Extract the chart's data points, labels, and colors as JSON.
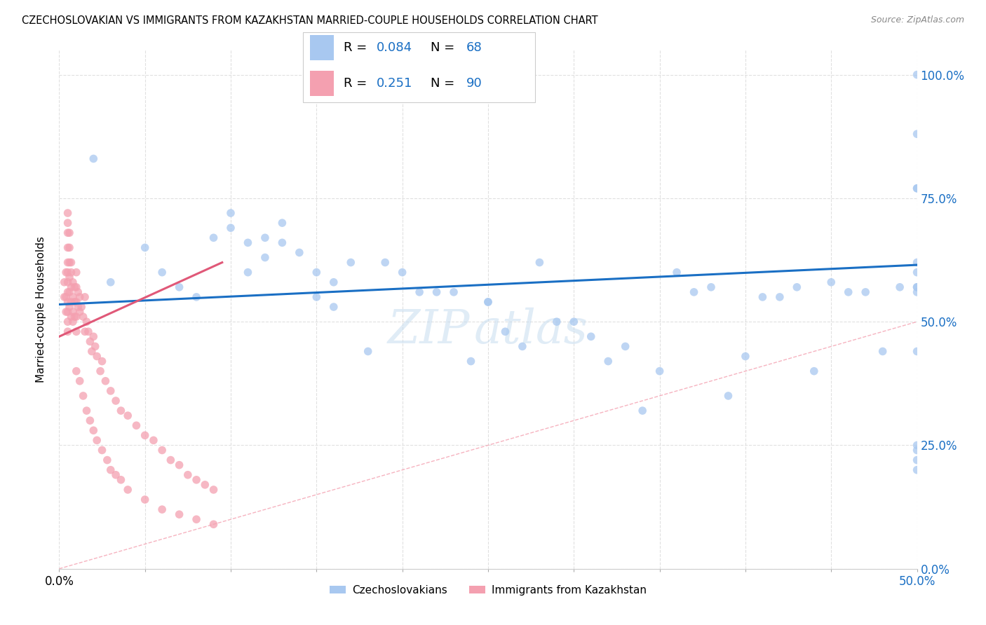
{
  "title": "CZECHOSLOVAKIAN VS IMMIGRANTS FROM KAZAKHSTAN MARRIED-COUPLE HOUSEHOLDS CORRELATION CHART",
  "source": "Source: ZipAtlas.com",
  "ylabel": "Married-couple Households",
  "yticks": [
    "0.0%",
    "25.0%",
    "50.0%",
    "75.0%",
    "100.0%"
  ],
  "ytick_vals": [
    0.0,
    0.25,
    0.5,
    0.75,
    1.0
  ],
  "xlim": [
    0.0,
    0.5
  ],
  "ylim": [
    0.0,
    1.05
  ],
  "color_blue": "#a8c8f0",
  "color_pink": "#f4a0b0",
  "line_color_blue": "#1a6fc4",
  "line_color_pink": "#e05878",
  "diag_color": "#f4a0b0",
  "watermark": "ZIPAtlas",
  "blue_line_x": [
    0.0,
    0.5
  ],
  "blue_line_y": [
    0.535,
    0.615
  ],
  "pink_line_x": [
    0.0,
    0.095
  ],
  "pink_line_y": [
    0.47,
    0.62
  ],
  "background_color": "#ffffff",
  "grid_color": "#e0e0e0",
  "blue_scatter_x": [
    0.02,
    0.03,
    0.05,
    0.06,
    0.07,
    0.08,
    0.09,
    0.1,
    0.1,
    0.11,
    0.11,
    0.12,
    0.12,
    0.13,
    0.13,
    0.14,
    0.15,
    0.15,
    0.16,
    0.16,
    0.17,
    0.18,
    0.19,
    0.2,
    0.21,
    0.22,
    0.23,
    0.24,
    0.25,
    0.25,
    0.26,
    0.27,
    0.28,
    0.29,
    0.3,
    0.31,
    0.32,
    0.33,
    0.34,
    0.35,
    0.36,
    0.37,
    0.38,
    0.39,
    0.4,
    0.41,
    0.42,
    0.43,
    0.44,
    0.45,
    0.46,
    0.47,
    0.48,
    0.49,
    0.5,
    0.5,
    0.5,
    0.5,
    0.5,
    0.5,
    0.5,
    0.5,
    0.5,
    0.5,
    0.5,
    0.5,
    0.5,
    0.5
  ],
  "blue_scatter_y": [
    0.83,
    0.58,
    0.65,
    0.6,
    0.57,
    0.55,
    0.67,
    0.72,
    0.69,
    0.66,
    0.6,
    0.63,
    0.67,
    0.66,
    0.7,
    0.64,
    0.6,
    0.55,
    0.58,
    0.53,
    0.62,
    0.44,
    0.62,
    0.6,
    0.56,
    0.56,
    0.56,
    0.42,
    0.54,
    0.54,
    0.48,
    0.45,
    0.62,
    0.5,
    0.5,
    0.47,
    0.42,
    0.45,
    0.32,
    0.4,
    0.6,
    0.56,
    0.57,
    0.35,
    0.43,
    0.55,
    0.55,
    0.57,
    0.4,
    0.58,
    0.56,
    0.56,
    0.44,
    0.57,
    0.6,
    0.44,
    0.57,
    0.57,
    0.77,
    0.77,
    0.88,
    0.62,
    0.2,
    0.22,
    0.25,
    0.24,
    1.0,
    0.56
  ],
  "pink_scatter_x": [
    0.003,
    0.003,
    0.004,
    0.004,
    0.004,
    0.005,
    0.005,
    0.005,
    0.005,
    0.005,
    0.005,
    0.005,
    0.005,
    0.005,
    0.005,
    0.005,
    0.005,
    0.006,
    0.006,
    0.006,
    0.006,
    0.006,
    0.006,
    0.007,
    0.007,
    0.007,
    0.007,
    0.007,
    0.008,
    0.008,
    0.008,
    0.008,
    0.009,
    0.009,
    0.009,
    0.01,
    0.01,
    0.01,
    0.01,
    0.01,
    0.011,
    0.011,
    0.012,
    0.012,
    0.013,
    0.014,
    0.015,
    0.015,
    0.016,
    0.017,
    0.018,
    0.019,
    0.02,
    0.021,
    0.022,
    0.024,
    0.025,
    0.027,
    0.03,
    0.033,
    0.036,
    0.04,
    0.045,
    0.05,
    0.055,
    0.06,
    0.065,
    0.07,
    0.075,
    0.08,
    0.085,
    0.09,
    0.01,
    0.012,
    0.014,
    0.016,
    0.018,
    0.02,
    0.022,
    0.025,
    0.028,
    0.03,
    0.033,
    0.036,
    0.04,
    0.05,
    0.06,
    0.07,
    0.08,
    0.09
  ],
  "pink_scatter_y": [
    0.55,
    0.58,
    0.6,
    0.55,
    0.52,
    0.72,
    0.7,
    0.68,
    0.65,
    0.62,
    0.6,
    0.58,
    0.56,
    0.54,
    0.52,
    0.5,
    0.48,
    0.68,
    0.65,
    0.62,
    0.59,
    0.56,
    0.53,
    0.62,
    0.6,
    0.57,
    0.54,
    0.51,
    0.58,
    0.55,
    0.52,
    0.5,
    0.57,
    0.54,
    0.51,
    0.6,
    0.57,
    0.54,
    0.51,
    0.48,
    0.56,
    0.53,
    0.55,
    0.52,
    0.53,
    0.51,
    0.55,
    0.48,
    0.5,
    0.48,
    0.46,
    0.44,
    0.47,
    0.45,
    0.43,
    0.4,
    0.42,
    0.38,
    0.36,
    0.34,
    0.32,
    0.31,
    0.29,
    0.27,
    0.26,
    0.24,
    0.22,
    0.21,
    0.19,
    0.18,
    0.17,
    0.16,
    0.4,
    0.38,
    0.35,
    0.32,
    0.3,
    0.28,
    0.26,
    0.24,
    0.22,
    0.2,
    0.19,
    0.18,
    0.16,
    0.14,
    0.12,
    0.11,
    0.1,
    0.09
  ]
}
